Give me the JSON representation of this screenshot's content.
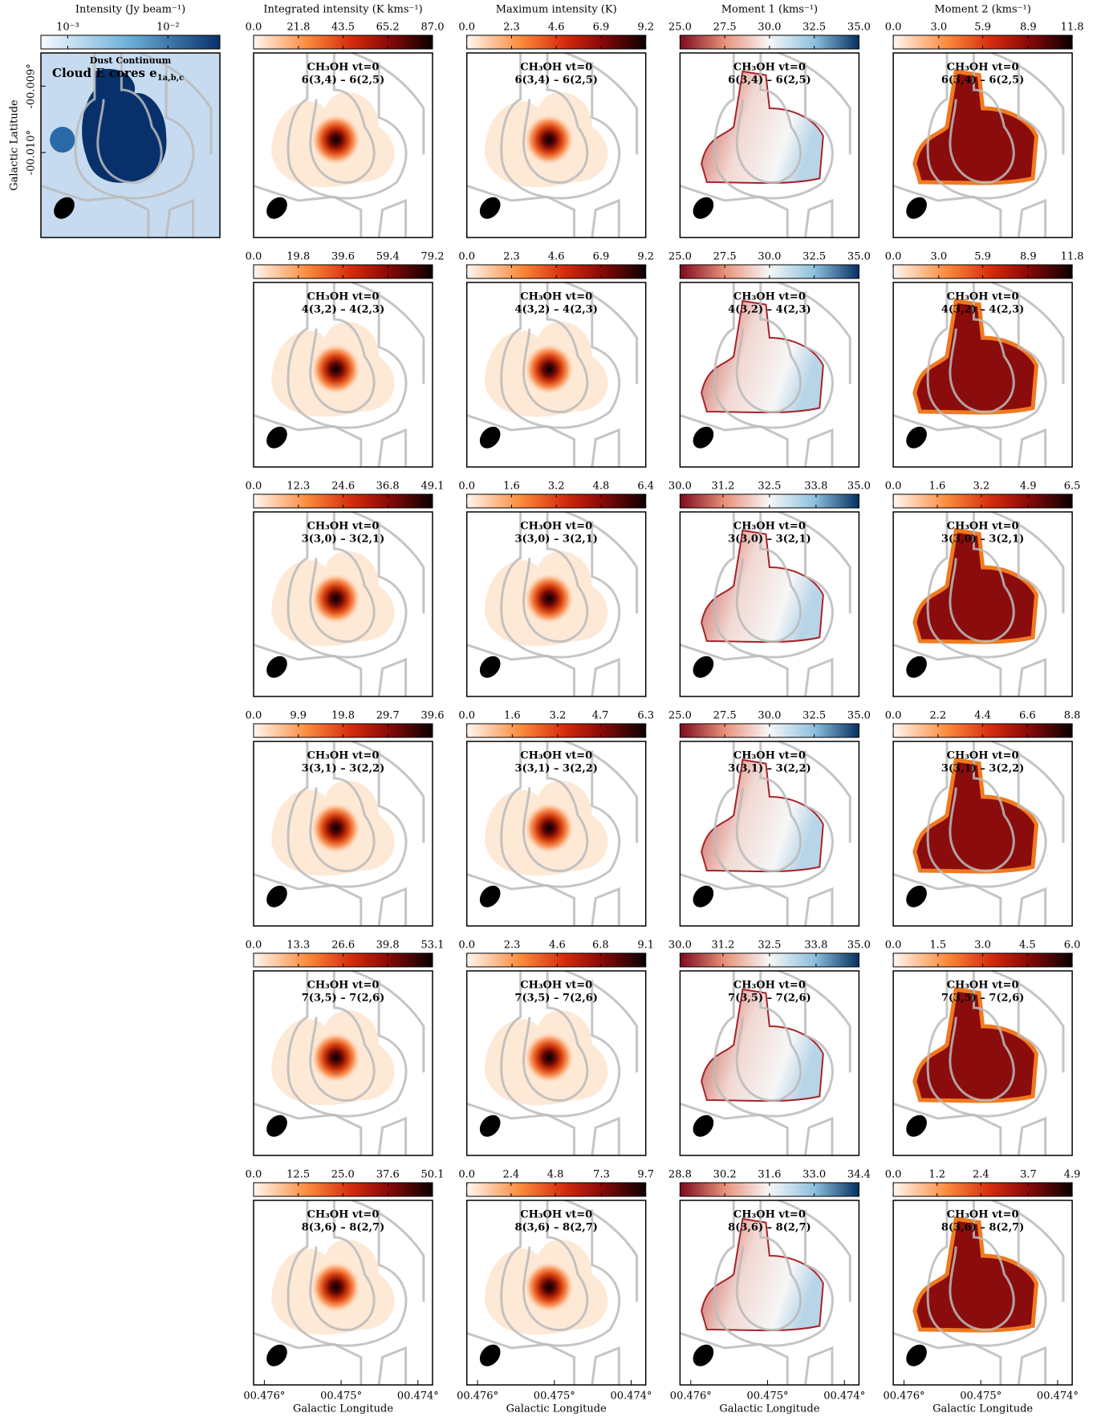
{
  "chart_data": [
    {
      "type": "image",
      "title": "Intensity (Jy beam⁻¹)",
      "colormap": "Blues",
      "log": true,
      "clim": [
        0.00054,
        0.033
      ],
      "colorbar_ticks": [
        {
          "value": 0.001,
          "label": "10⁻³"
        },
        {
          "value": 0.01,
          "label": "10⁻²"
        }
      ],
      "label": "Dust Continuum",
      "sublabel": "Cloud E cores e",
      "sublabel_sub": "1a,b,c",
      "ylabel": "Galactic Latitude",
      "ylim": [
        -0.01128,
        -0.0085
      ],
      "yticks": [
        {
          "value": -0.009,
          "label": "-00.009°"
        },
        {
          "value": -0.01,
          "label": "-00.010°"
        }
      ]
    },
    {
      "type": "image",
      "title": "Integrated intensity (K kms⁻¹)",
      "colormap": "Oranges",
      "colorbar_ticks": [
        {
          "value": 0,
          "label": "0.0"
        },
        21.8,
        43.5,
        65.2,
        {
          "value": 87,
          "label": "87.0"
        }
      ],
      "species": "CH₃OH vt=0",
      "transition": "6(3,4) – 6(2,5)"
    },
    {
      "type": "image",
      "title": "Maximum intensity (K)",
      "colormap": "Oranges",
      "colorbar_ticks": [
        {
          "value": 0,
          "label": "0.0"
        },
        2.3,
        4.6,
        6.9,
        9.2
      ],
      "species": "CH₃OH vt=0",
      "transition": "6(3,4) – 6(2,5)"
    },
    {
      "type": "image",
      "title": "Moment 1 (kms⁻¹)",
      "colormap": "RdBu",
      "colorbar_ticks": [
        {
          "value": 25,
          "label": "25.0"
        },
        27.5,
        {
          "value": 30,
          "label": "30.0"
        },
        32.5,
        {
          "value": 35,
          "label": "35.0"
        }
      ],
      "species": "CH₃OH vt=0",
      "transition": "6(3,4) – 6(2,5)"
    },
    {
      "type": "image",
      "title": "Moment 2 (kms⁻¹)",
      "colormap": "Oranges",
      "colorbar_ticks": [
        {
          "value": 0,
          "label": "0.0"
        },
        {
          "value": 3,
          "label": "3.0"
        },
        5.9,
        8.9,
        11.8
      ],
      "species": "CH₃OH vt=0",
      "transition": "6(3,4) – 6(2,5)"
    },
    {
      "type": "image",
      "colormap": "Oranges",
      "colorbar_ticks": [
        {
          "value": 0,
          "label": "0.0"
        },
        19.8,
        39.6,
        59.4,
        79.2
      ],
      "species": "CH₃OH vt=0",
      "transition": "4(3,2) – 4(2,3)"
    },
    {
      "type": "image",
      "colormap": "Oranges",
      "colorbar_ticks": [
        {
          "value": 0,
          "label": "0.0"
        },
        2.3,
        4.6,
        6.9,
        9.2
      ],
      "species": "CH₃OH vt=0",
      "transition": "4(3,2) – 4(2,3)"
    },
    {
      "type": "image",
      "colormap": "RdBu",
      "colorbar_ticks": [
        {
          "value": 25,
          "label": "25.0"
        },
        27.5,
        {
          "value": 30,
          "label": "30.0"
        },
        32.5,
        {
          "value": 35,
          "label": "35.0"
        }
      ],
      "species": "CH₃OH vt=0",
      "transition": "4(3,2) – 4(2,3)"
    },
    {
      "type": "image",
      "colormap": "Oranges",
      "colorbar_ticks": [
        {
          "value": 0,
          "label": "0.0"
        },
        {
          "value": 3,
          "label": "3.0"
        },
        5.9,
        8.9,
        11.8
      ],
      "species": "CH₃OH vt=0",
      "transition": "4(3,2) – 4(2,3)"
    },
    {
      "type": "image",
      "colormap": "Oranges",
      "colorbar_ticks": [
        {
          "value": 0,
          "label": "0.0"
        },
        12.3,
        24.6,
        36.8,
        49.1
      ],
      "species": "CH₃OH vt=0",
      "transition": "3(3,0) – 3(2,1)"
    },
    {
      "type": "image",
      "colormap": "Oranges",
      "colorbar_ticks": [
        {
          "value": 0,
          "label": "0.0"
        },
        1.6,
        3.2,
        4.8,
        6.4
      ],
      "species": "CH₃OH vt=0",
      "transition": "3(3,0) – 3(2,1)"
    },
    {
      "type": "image",
      "colormap": "RdBu",
      "colorbar_ticks": [
        {
          "value": 30,
          "label": "30.0"
        },
        31.2,
        32.5,
        33.8,
        {
          "value": 35,
          "label": "35.0"
        }
      ],
      "species": "CH₃OH vt=0",
      "transition": "3(3,0) – 3(2,1)"
    },
    {
      "type": "image",
      "colormap": "Oranges",
      "colorbar_ticks": [
        {
          "value": 0,
          "label": "0.0"
        },
        1.6,
        3.2,
        4.9,
        6.5
      ],
      "species": "CH₃OH vt=0",
      "transition": "3(3,0) – 3(2,1)"
    },
    {
      "type": "image",
      "colormap": "Oranges",
      "colorbar_ticks": [
        {
          "value": 0,
          "label": "0.0"
        },
        9.9,
        19.8,
        29.7,
        39.6
      ],
      "species": "CH₃OH vt=0",
      "transition": "3(3,1) – 3(2,2)"
    },
    {
      "type": "image",
      "colormap": "Oranges",
      "colorbar_ticks": [
        {
          "value": 0,
          "label": "0.0"
        },
        1.6,
        3.2,
        4.7,
        6.3
      ],
      "species": "CH₃OH vt=0",
      "transition": "3(3,1) – 3(2,2)"
    },
    {
      "type": "image",
      "colormap": "RdBu",
      "colorbar_ticks": [
        {
          "value": 25,
          "label": "25.0"
        },
        27.5,
        {
          "value": 30,
          "label": "30.0"
        },
        32.5,
        {
          "value": 35,
          "label": "35.0"
        }
      ],
      "species": "CH₃OH vt=0",
      "transition": "3(3,1) – 3(2,2)"
    },
    {
      "type": "image",
      "colormap": "Oranges",
      "colorbar_ticks": [
        {
          "value": 0,
          "label": "0.0"
        },
        2.2,
        4.4,
        6.6,
        8.8
      ],
      "species": "CH₃OH vt=0",
      "transition": "3(3,1) – 3(2,2)"
    },
    {
      "type": "image",
      "colormap": "Oranges",
      "colorbar_ticks": [
        {
          "value": 0,
          "label": "0.0"
        },
        13.3,
        26.6,
        39.8,
        53.1
      ],
      "species": "CH₃OH vt=0",
      "transition": "7(3,5) – 7(2,6)"
    },
    {
      "type": "image",
      "colormap": "Oranges",
      "colorbar_ticks": [
        {
          "value": 0,
          "label": "0.0"
        },
        2.3,
        4.6,
        6.8,
        9.1
      ],
      "species": "CH₃OH vt=0",
      "transition": "7(3,5) – 7(2,6)"
    },
    {
      "type": "image",
      "colormap": "RdBu",
      "colorbar_ticks": [
        {
          "value": 30,
          "label": "30.0"
        },
        31.2,
        32.5,
        33.8,
        {
          "value": 35,
          "label": "35.0"
        }
      ],
      "species": "CH₃OH vt=0",
      "transition": "7(3,5) – 7(2,6)"
    },
    {
      "type": "image",
      "colormap": "Oranges",
      "colorbar_ticks": [
        {
          "value": 0,
          "label": "0.0"
        },
        1.5,
        {
          "value": 3,
          "label": "3.0"
        },
        4.5,
        {
          "value": 6,
          "label": "6.0"
        }
      ],
      "species": "CH₃OH vt=0",
      "transition": "7(3,5) – 7(2,6)"
    },
    {
      "type": "image",
      "colormap": "Oranges",
      "colorbar_ticks": [
        {
          "value": 0,
          "label": "0.0"
        },
        12.5,
        {
          "value": 25,
          "label": "25.0"
        },
        37.6,
        50.1
      ],
      "species": "CH₃OH vt=0",
      "transition": "8(3,6) – 8(2,7)",
      "xlabel": "Galactic Longitude",
      "xlim": [
        0.47614,
        0.47381
      ],
      "xticks": [
        {
          "value": 0.476,
          "label": "00.476°"
        },
        {
          "value": 0.475,
          "label": "00.475°"
        },
        {
          "value": 0.474,
          "label": "00.474°"
        }
      ]
    },
    {
      "type": "image",
      "colormap": "Oranges",
      "colorbar_ticks": [
        {
          "value": 0,
          "label": "0.0"
        },
        2.4,
        4.8,
        7.3,
        9.7
      ],
      "species": "CH₃OH vt=0",
      "transition": "8(3,6) – 8(2,7)",
      "xlabel": "Galactic Longitude",
      "xlim": [
        0.47614,
        0.47381
      ],
      "xticks": [
        {
          "value": 0.476,
          "label": "00.476°"
        },
        {
          "value": 0.475,
          "label": "00.475°"
        },
        {
          "value": 0.474,
          "label": "00.474°"
        }
      ]
    },
    {
      "type": "image",
      "colormap": "RdBu",
      "colorbar_ticks": [
        28.8,
        30.2,
        31.6,
        {
          "value": 33,
          "label": "33.0"
        },
        34.4
      ],
      "species": "CH₃OH vt=0",
      "transition": "8(3,6) – 8(2,7)",
      "xlabel": "Galactic Longitude",
      "xlim": [
        0.47614,
        0.47381
      ],
      "xticks": [
        {
          "value": 0.476,
          "label": "00.476°"
        },
        {
          "value": 0.475,
          "label": "00.475°"
        },
        {
          "value": 0.474,
          "label": "00.474°"
        }
      ]
    },
    {
      "type": "image",
      "colormap": "Oranges",
      "colorbar_ticks": [
        {
          "value": 0,
          "label": "0.0"
        },
        1.2,
        2.4,
        3.7,
        4.9
      ],
      "species": "CH₃OH vt=0",
      "transition": "8(3,6) – 8(2,7)",
      "xlabel": "Galactic Longitude",
      "xlim": [
        0.47614,
        0.47381
      ],
      "xticks": [
        {
          "value": 0.476,
          "label": "00.476°"
        },
        {
          "value": 0.475,
          "label": "00.475°"
        },
        {
          "value": 0.474,
          "label": "00.474°"
        }
      ]
    }
  ]
}
